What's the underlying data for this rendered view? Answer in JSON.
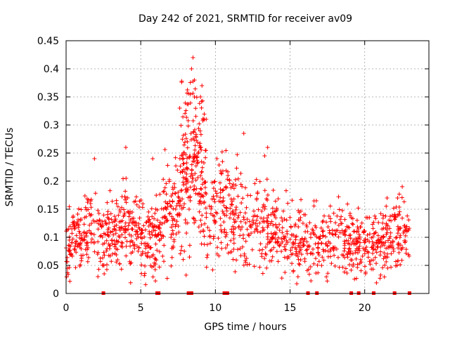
{
  "chart_data": {
    "type": "scatter",
    "title": "Day 242 of 2021, SRMTID for receiver av09",
    "xlabel": "GPS time / hours",
    "ylabel": "SRMTID / TECUs",
    "xlim": [
      0,
      24.3
    ],
    "ylim": [
      0,
      0.45
    ],
    "grid": true,
    "x_ticks": [
      0,
      5,
      10,
      15,
      20
    ],
    "y_ticks": [
      0,
      0.05,
      0.1,
      0.15,
      0.2,
      0.25,
      0.3,
      0.35,
      0.4,
      0.45
    ],
    "x_tick_labels": [
      "0",
      "5",
      "10",
      "15",
      "20"
    ],
    "y_tick_labels": [
      "0",
      "0.05",
      "0.1",
      "0.15",
      "0.2",
      "0.25",
      "0.3",
      "0.35",
      "0.4",
      "0.45"
    ],
    "marker": "+",
    "color": "#ff0000",
    "series": [
      {
        "name": "SRMTID",
        "trend": [
          [
            0.0,
            0.085
          ],
          [
            0.5,
            0.095
          ],
          [
            1.0,
            0.1
          ],
          [
            1.5,
            0.115
          ],
          [
            2.0,
            0.12
          ],
          [
            2.5,
            0.09
          ],
          [
            3.0,
            0.11
          ],
          [
            3.5,
            0.1
          ],
          [
            4.0,
            0.12
          ],
          [
            4.5,
            0.11
          ],
          [
            5.0,
            0.1
          ],
          [
            5.5,
            0.1
          ],
          [
            6.0,
            0.1
          ],
          [
            6.5,
            0.13
          ],
          [
            7.0,
            0.14
          ],
          [
            7.5,
            0.16
          ],
          [
            8.0,
            0.2
          ],
          [
            8.5,
            0.25
          ],
          [
            9.0,
            0.22
          ],
          [
            9.5,
            0.11
          ],
          [
            10.0,
            0.16
          ],
          [
            10.5,
            0.15
          ],
          [
            11.0,
            0.13
          ],
          [
            11.5,
            0.13
          ],
          [
            12.0,
            0.13
          ],
          [
            12.5,
            0.14
          ],
          [
            13.0,
            0.13
          ],
          [
            13.5,
            0.12
          ],
          [
            14.0,
            0.11
          ],
          [
            14.5,
            0.1
          ],
          [
            15.0,
            0.095
          ],
          [
            15.5,
            0.09
          ],
          [
            16.0,
            0.085
          ],
          [
            16.5,
            0.085
          ],
          [
            17.0,
            0.09
          ],
          [
            17.5,
            0.09
          ],
          [
            18.0,
            0.1
          ],
          [
            18.5,
            0.1
          ],
          [
            19.0,
            0.095
          ],
          [
            19.5,
            0.085
          ],
          [
            20.0,
            0.085
          ],
          [
            20.5,
            0.09
          ],
          [
            21.0,
            0.09
          ],
          [
            21.5,
            0.1
          ],
          [
            22.0,
            0.11
          ],
          [
            22.5,
            0.11
          ],
          [
            23.0,
            0.1
          ]
        ],
        "peaks": [
          [
            1.9,
            0.24
          ],
          [
            4.0,
            0.26
          ],
          [
            8.5,
            0.42
          ],
          [
            8.4,
            0.4
          ],
          [
            8.6,
            0.38
          ],
          [
            9.1,
            0.37
          ],
          [
            9.0,
            0.35
          ],
          [
            10.1,
            0.24
          ],
          [
            11.9,
            0.285
          ],
          [
            13.5,
            0.26
          ],
          [
            13.3,
            0.245
          ],
          [
            21.5,
            0.17
          ],
          [
            22.2,
            0.17
          ],
          [
            5.8,
            0.24
          ]
        ]
      }
    ],
    "zero_markers_x": [
      2.5,
      6.1,
      6.2,
      8.2,
      8.4,
      10.6,
      10.8,
      16.2,
      16.8,
      19.1,
      19.6,
      20.6,
      22.0,
      23.0
    ]
  }
}
